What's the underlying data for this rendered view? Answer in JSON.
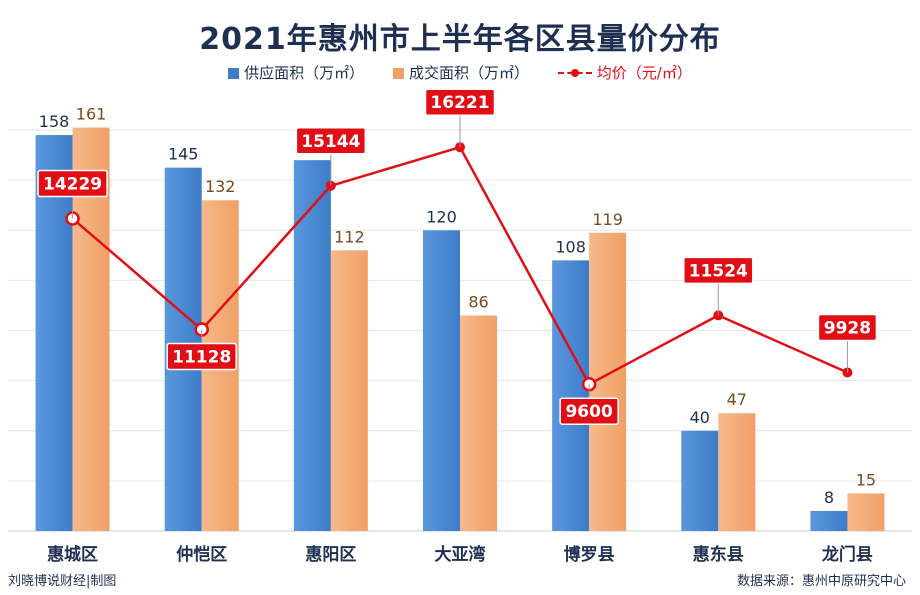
{
  "chart_data": {
    "type": "bar",
    "title": "2021年惠州市上半年各区县量价分布",
    "categories": [
      "惠城区",
      "仲恺区",
      "惠阳区",
      "大亚湾",
      "博罗县",
      "惠东县",
      "龙门县"
    ],
    "series": [
      {
        "name": "供应面积（万㎡）",
        "kind": "bar",
        "color": "#3d7cc9",
        "values": [
          158,
          145,
          148,
          120,
          108,
          40,
          8
        ]
      },
      {
        "name": "成交面积（万㎡）",
        "kind": "bar",
        "color": "#f0a066",
        "values": [
          161,
          132,
          112,
          86,
          119,
          47,
          15
        ]
      },
      {
        "name": "均价（元/㎡）",
        "kind": "line",
        "color": "#e10e16",
        "values": [
          14229,
          11128,
          15144,
          16221,
          9600,
          11524,
          9928
        ]
      }
    ],
    "bar_ylim": [
      0,
      170
    ],
    "line_ylim": [
      5500,
      17400
    ],
    "grid": true,
    "legend_position": "top"
  },
  "footer": {
    "left": "刘晓博说财经|制图",
    "right": "数据来源：惠州中原研究中心"
  },
  "colors": {
    "title": "#1f2f52",
    "supply_label": "#1f2f52",
    "deal_label": "#7a4a1e",
    "price_box": "#e10e16"
  }
}
